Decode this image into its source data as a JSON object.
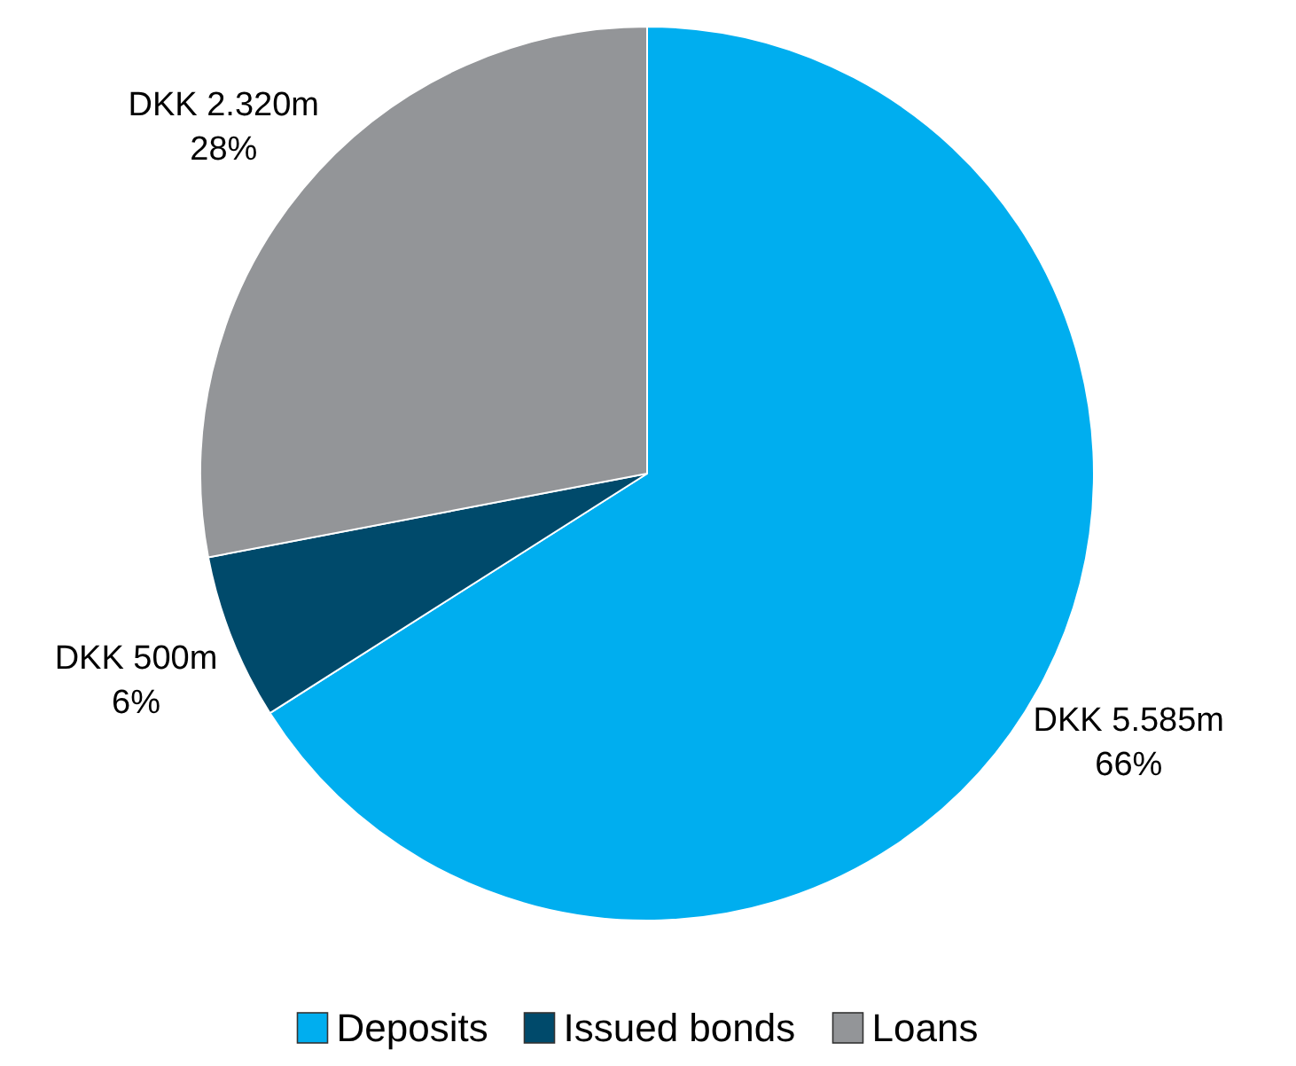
{
  "chart_data": {
    "type": "pie",
    "categories": [
      "Deposits",
      "Issued bonds",
      "Loans"
    ],
    "values": [
      66,
      6,
      28
    ],
    "colors": [
      "#00aeef",
      "#004a6b",
      "#939598"
    ],
    "value_labels": [
      "DKK 5.585m\n66%",
      "DKK 500m\n6%",
      "DKK 2.320m\n28%"
    ],
    "legend": "bottom"
  }
}
